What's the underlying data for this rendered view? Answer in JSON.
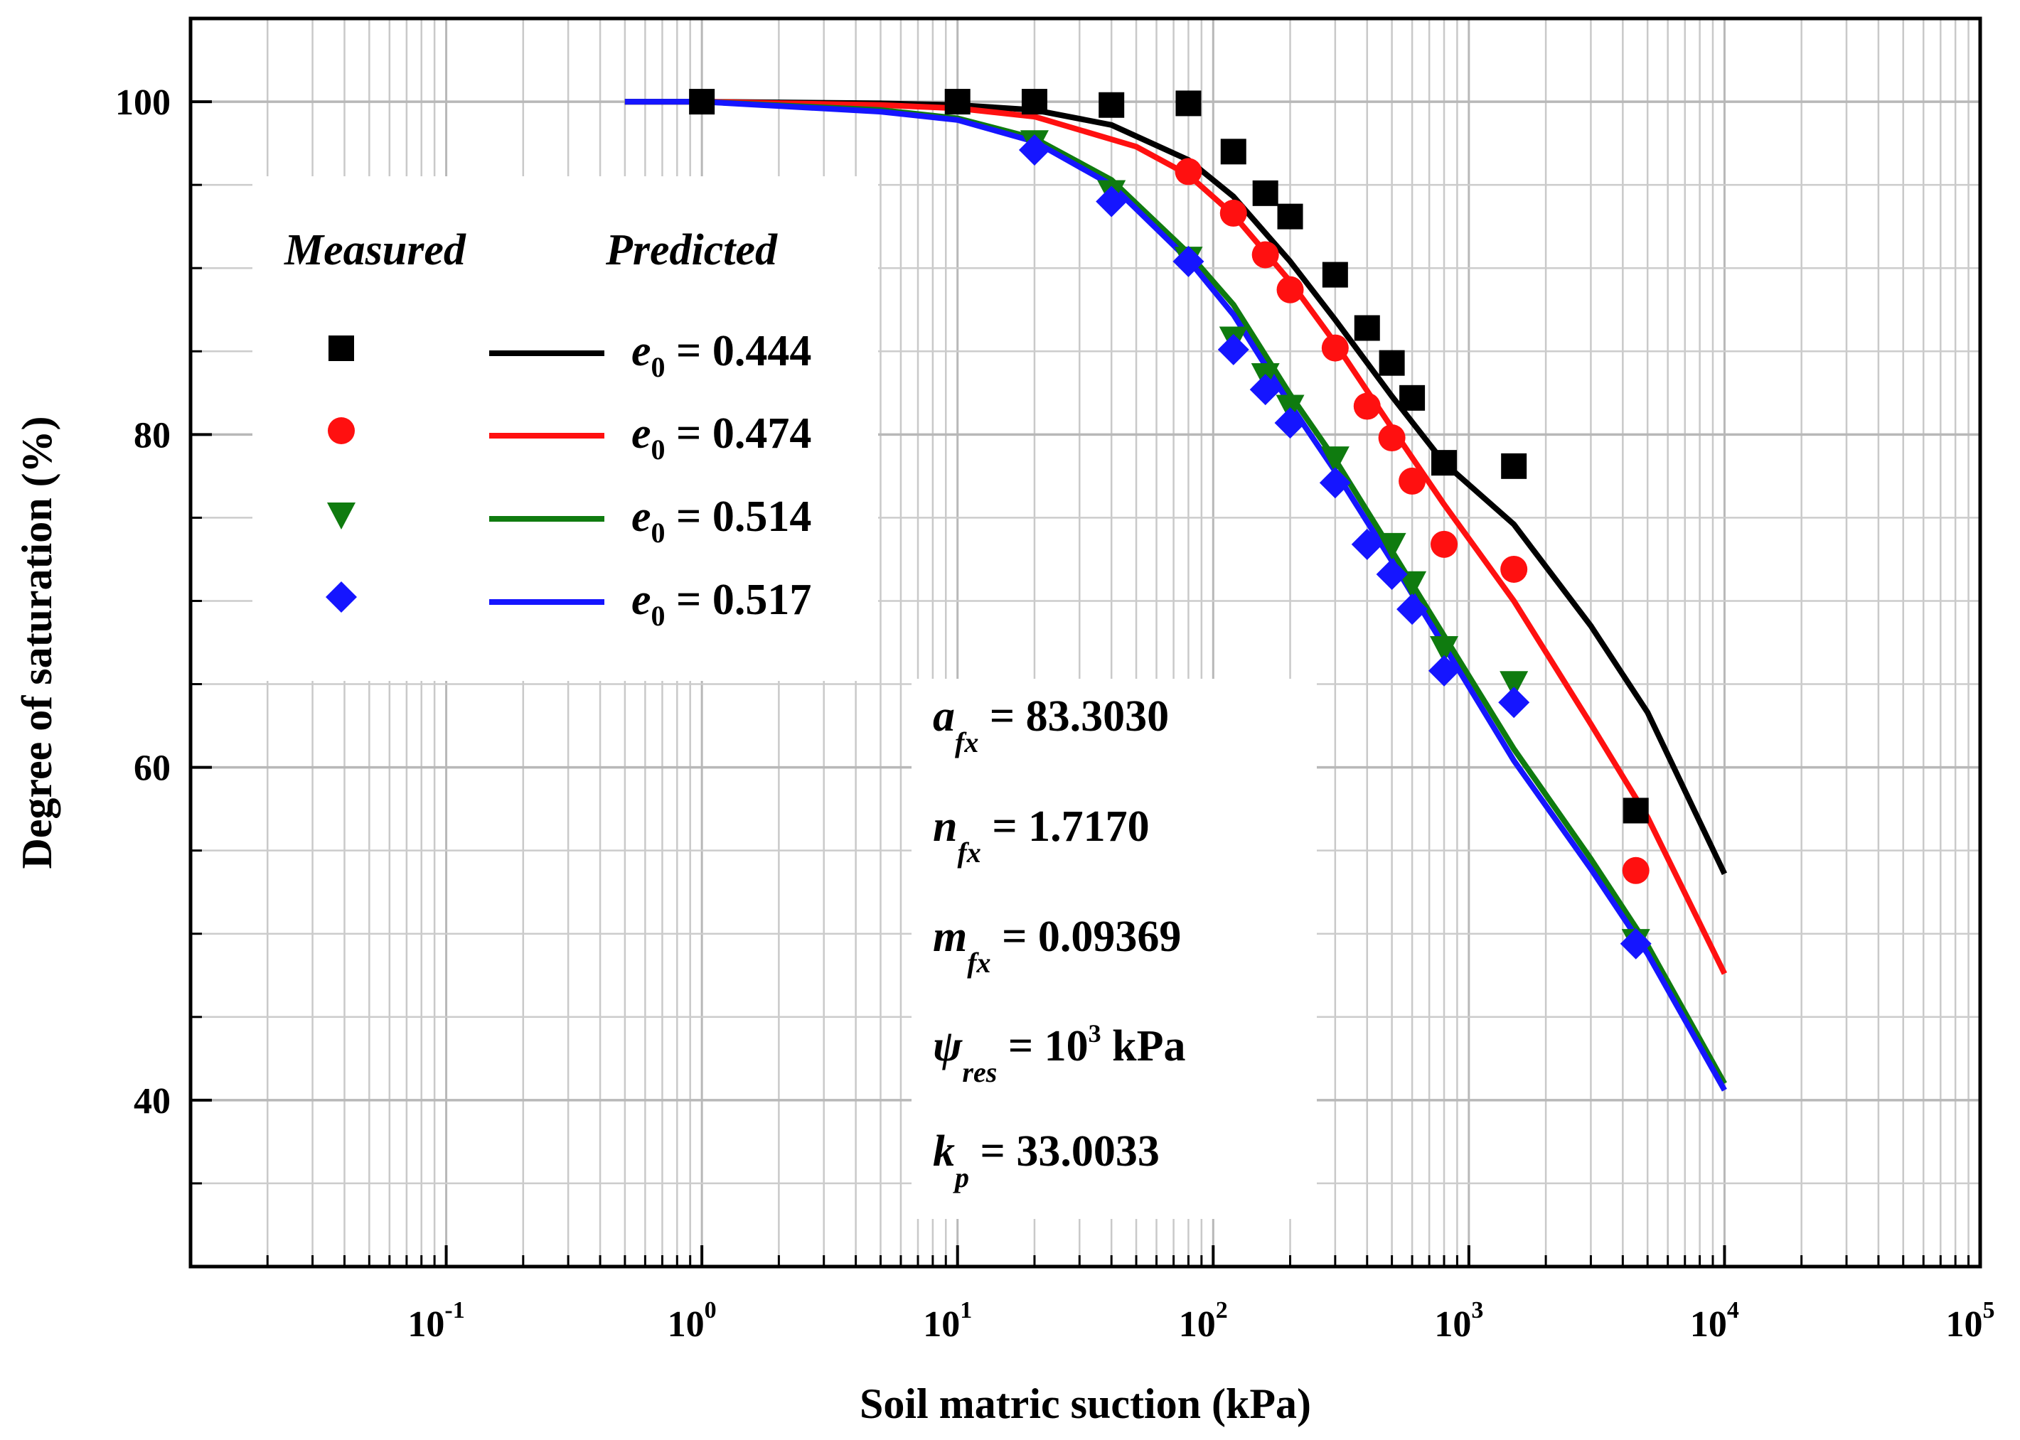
{
  "chart_data": {
    "type": "line",
    "x_scale": "log",
    "xlabel": "Soil matric suction (kPa)",
    "ylabel": "Degree of saturation (%)",
    "xlim": [
      0.01,
      100000
    ],
    "ylim": [
      30,
      105
    ],
    "grid": true,
    "x_ticks": [
      {
        "value": 0.1,
        "base": "10",
        "exp": "-1"
      },
      {
        "value": 1,
        "base": "10",
        "exp": "0"
      },
      {
        "value": 10,
        "base": "10",
        "exp": "1"
      },
      {
        "value": 100,
        "base": "10",
        "exp": "2"
      },
      {
        "value": 1000,
        "base": "10",
        "exp": "3"
      },
      {
        "value": 10000,
        "base": "10",
        "exp": "4"
      },
      {
        "value": 100000,
        "base": "10",
        "exp": "5"
      }
    ],
    "y_ticks": [
      {
        "value": 40,
        "label": "40"
      },
      {
        "value": 60,
        "label": "60"
      },
      {
        "value": 80,
        "label": "80"
      },
      {
        "value": 100,
        "label": "100"
      }
    ],
    "legend": {
      "position": "top-left",
      "measured_header": "Measured",
      "predicted_header": "Predicted"
    },
    "series": [
      {
        "key": "s1",
        "name": "e0 = 0.444",
        "symbol": "e",
        "subscript": "0",
        "value_text": " = 0.444",
        "color": "#000000",
        "marker": "square",
        "measured": [
          [
            1,
            100
          ],
          [
            10,
            100
          ],
          [
            20,
            100
          ],
          [
            40,
            99.8
          ],
          [
            80,
            99.9
          ],
          [
            120,
            97
          ],
          [
            160,
            94.5
          ],
          [
            200,
            93.1
          ],
          [
            300,
            89.6
          ],
          [
            400,
            86.4
          ],
          [
            500,
            84.3
          ],
          [
            600,
            82.2
          ],
          [
            800,
            78.3
          ],
          [
            1500,
            78.1
          ],
          [
            4500,
            57.4
          ]
        ],
        "predicted": [
          [
            0.5,
            100
          ],
          [
            1,
            100
          ],
          [
            5,
            99.9
          ],
          [
            10,
            99.8
          ],
          [
            20,
            99.5
          ],
          [
            40,
            98.6
          ],
          [
            80,
            96.5
          ],
          [
            120,
            94.3
          ],
          [
            200,
            90.4
          ],
          [
            300,
            86.9
          ],
          [
            500,
            82.3
          ],
          [
            800,
            78.3
          ],
          [
            1500,
            74.6
          ],
          [
            3000,
            68.5
          ],
          [
            5000,
            63.3
          ],
          [
            10000,
            53.6
          ]
        ]
      },
      {
        "key": "s2",
        "name": "e0 = 0.474",
        "symbol": "e",
        "subscript": "0",
        "value_text": " = 0.474",
        "color": "#ff1010",
        "marker": "circle",
        "measured": [
          [
            80,
            95.8
          ],
          [
            120,
            93.3
          ],
          [
            160,
            90.8
          ],
          [
            200,
            88.7
          ],
          [
            300,
            85.2
          ],
          [
            400,
            81.7
          ],
          [
            500,
            79.8
          ],
          [
            600,
            77.2
          ],
          [
            800,
            73.4
          ],
          [
            1500,
            71.9
          ],
          [
            4500,
            53.8
          ]
        ],
        "predicted": [
          [
            0.5,
            100
          ],
          [
            1,
            100
          ],
          [
            5,
            99.8
          ],
          [
            10,
            99.6
          ],
          [
            20,
            99.1
          ],
          [
            50,
            97.3
          ],
          [
            80,
            95.6
          ],
          [
            120,
            93.2
          ],
          [
            200,
            89.2
          ],
          [
            300,
            85.5
          ],
          [
            500,
            80.4
          ],
          [
            800,
            75.8
          ],
          [
            1500,
            70.0
          ],
          [
            3000,
            62.6
          ],
          [
            5000,
            57.0
          ],
          [
            10000,
            47.6
          ]
        ]
      },
      {
        "key": "s3",
        "name": "e0 = 0.514",
        "symbol": "e",
        "subscript": "0",
        "value_text": " = 0.514",
        "color": "#0f7b0f",
        "marker": "triangle-down",
        "measured": [
          [
            20,
            97.6
          ],
          [
            40,
            94.6
          ],
          [
            80,
            90.6
          ],
          [
            120,
            85.8
          ],
          [
            160,
            83.6
          ],
          [
            200,
            81.7
          ],
          [
            300,
            78.6
          ],
          [
            500,
            73.4
          ],
          [
            600,
            71.1
          ],
          [
            800,
            67.2
          ],
          [
            1500,
            65.1
          ],
          [
            4500,
            49.6
          ]
        ],
        "predicted": [
          [
            0.5,
            100
          ],
          [
            1,
            100
          ],
          [
            5,
            99.5
          ],
          [
            10,
            99.0
          ],
          [
            20,
            97.8
          ],
          [
            40,
            95.3
          ],
          [
            80,
            90.9
          ],
          [
            120,
            87.8
          ],
          [
            200,
            82.4
          ],
          [
            300,
            78.5
          ],
          [
            500,
            73.0
          ],
          [
            800,
            67.9
          ],
          [
            1500,
            61.1
          ],
          [
            3000,
            54.5
          ],
          [
            5000,
            49.3
          ],
          [
            10000,
            41.0
          ]
        ]
      },
      {
        "key": "s4",
        "name": "e0 = 0.517",
        "symbol": "e",
        "subscript": "0",
        "value_text": " = 0.517",
        "color": "#1515ff",
        "marker": "diamond",
        "measured": [
          [
            20,
            97.1
          ],
          [
            40,
            94.0
          ],
          [
            80,
            90.4
          ],
          [
            120,
            85.1
          ],
          [
            160,
            82.7
          ],
          [
            200,
            80.7
          ],
          [
            300,
            77.1
          ],
          [
            400,
            73.4
          ],
          [
            500,
            71.6
          ],
          [
            600,
            69.5
          ],
          [
            800,
            65.8
          ],
          [
            1500,
            63.9
          ],
          [
            4500,
            49.4
          ]
        ],
        "predicted": [
          [
            0.5,
            100
          ],
          [
            1,
            100
          ],
          [
            5,
            99.4
          ],
          [
            10,
            98.9
          ],
          [
            20,
            97.6
          ],
          [
            40,
            95.0
          ],
          [
            80,
            90.5
          ],
          [
            120,
            87.2
          ],
          [
            200,
            81.8
          ],
          [
            300,
            77.8
          ],
          [
            500,
            72.4
          ],
          [
            800,
            67.3
          ],
          [
            1500,
            60.4
          ],
          [
            3000,
            53.9
          ],
          [
            5000,
            48.8
          ],
          [
            10000,
            40.6
          ]
        ]
      }
    ],
    "parameters": [
      {
        "main": "a",
        "sub": "fx",
        "value": " = 83.3030"
      },
      {
        "main": "n",
        "sub": "fx",
        "value": " = 1.7170"
      },
      {
        "main": "m",
        "sub": "fx",
        "value": " = 0.09369"
      },
      {
        "main": "ψ",
        "sub": "res",
        "value": " = 10",
        "sup": "3",
        "tail": " kPa"
      },
      {
        "main": "k",
        "sub": "p",
        "value": " = 33.0033"
      }
    ]
  }
}
